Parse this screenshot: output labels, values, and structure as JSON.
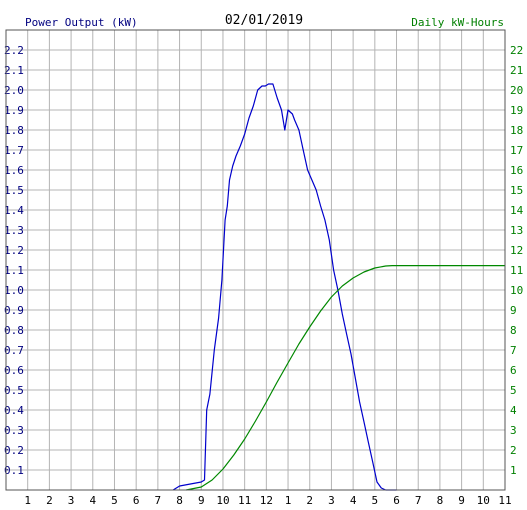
{
  "chart_data": {
    "type": "line",
    "title": "02/01/2019",
    "left_axis_label": "Power Output (kW)",
    "right_axis_label": "Daily kW-Hours",
    "x_tick_labels": [
      "1",
      "2",
      "3",
      "4",
      "5",
      "6",
      "7",
      "8",
      "9",
      "10",
      "11",
      "12",
      "1",
      "2",
      "3",
      "4",
      "5",
      "6",
      "7",
      "8",
      "9",
      "10",
      "11"
    ],
    "y_left_ticks": [
      "0.1",
      "0.2",
      "0.3",
      "0.4",
      "0.5",
      "0.6",
      "0.7",
      "0.8",
      "0.9",
      "1.0",
      "1.1",
      "1.2",
      "1.3",
      "1.4",
      "1.5",
      "1.6",
      "1.7",
      "1.8",
      "1.9",
      "2.0",
      "2.1",
      "2.2"
    ],
    "y_right_ticks": [
      "1",
      "2",
      "3",
      "4",
      "5",
      "6",
      "7",
      "8",
      "9",
      "10",
      "11",
      "12",
      "13",
      "14",
      "15",
      "16",
      "17",
      "18",
      "19",
      "20",
      "21",
      "22"
    ],
    "xlim": [
      0,
      23
    ],
    "ylim_left": [
      0,
      2.3
    ],
    "ylim_right": [
      0,
      23
    ],
    "grid": true,
    "colors": {
      "power": "#0000cc",
      "energy": "#008800",
      "left_axis_text": "#000080",
      "right_axis_text": "#008000",
      "grid": "#b4b4b4"
    },
    "series": [
      {
        "axis": "left",
        "x": [
          7.7,
          8.0,
          8.5,
          9.0,
          9.15,
          9.25,
          9.4,
          9.6,
          9.8,
          9.95,
          10.1,
          10.2,
          10.3,
          10.45,
          10.6,
          10.8,
          11.0,
          11.2,
          11.4,
          11.6,
          11.8,
          11.95,
          12.1,
          12.3,
          12.5,
          12.7,
          12.85,
          13.0,
          13.2,
          13.3,
          13.5,
          13.7,
          13.9,
          14.1,
          14.3,
          14.5,
          14.7,
          14.9,
          15.1,
          15.3,
          15.5,
          15.7,
          15.9,
          16.1,
          16.3,
          16.5,
          16.7,
          16.9,
          17.1,
          17.3,
          17.5,
          17.7,
          17.9,
          18.0
        ],
        "y": [
          0.0,
          0.02,
          0.03,
          0.04,
          0.05,
          0.4,
          0.48,
          0.7,
          0.86,
          1.05,
          1.35,
          1.42,
          1.55,
          1.62,
          1.67,
          1.72,
          1.78,
          1.86,
          1.92,
          2.0,
          2.02,
          2.02,
          2.03,
          2.03,
          1.96,
          1.9,
          1.8,
          1.9,
          1.88,
          1.85,
          1.8,
          1.7,
          1.6,
          1.55,
          1.5,
          1.42,
          1.35,
          1.25,
          1.1,
          1.0,
          0.88,
          0.78,
          0.68,
          0.56,
          0.44,
          0.34,
          0.24,
          0.14,
          0.04,
          0.01,
          0.0,
          0.0,
          0.0,
          0.0
        ]
      },
      {
        "axis": "right",
        "x": [
          8.3,
          9.0,
          9.5,
          10.0,
          10.5,
          11.0,
          11.5,
          12.0,
          12.5,
          13.0,
          13.5,
          14.0,
          14.5,
          15.0,
          15.5,
          16.0,
          16.5,
          17.0,
          17.5,
          17.8,
          18.0,
          19.0,
          20.0,
          21.0,
          22.0,
          23.0
        ],
        "y": [
          0.0,
          0.15,
          0.5,
          1.05,
          1.75,
          2.55,
          3.45,
          4.4,
          5.4,
          6.35,
          7.3,
          8.15,
          8.95,
          9.65,
          10.2,
          10.6,
          10.9,
          11.1,
          11.2,
          11.22,
          11.22,
          11.22,
          11.22,
          11.22,
          11.22,
          11.22
        ]
      }
    ]
  }
}
